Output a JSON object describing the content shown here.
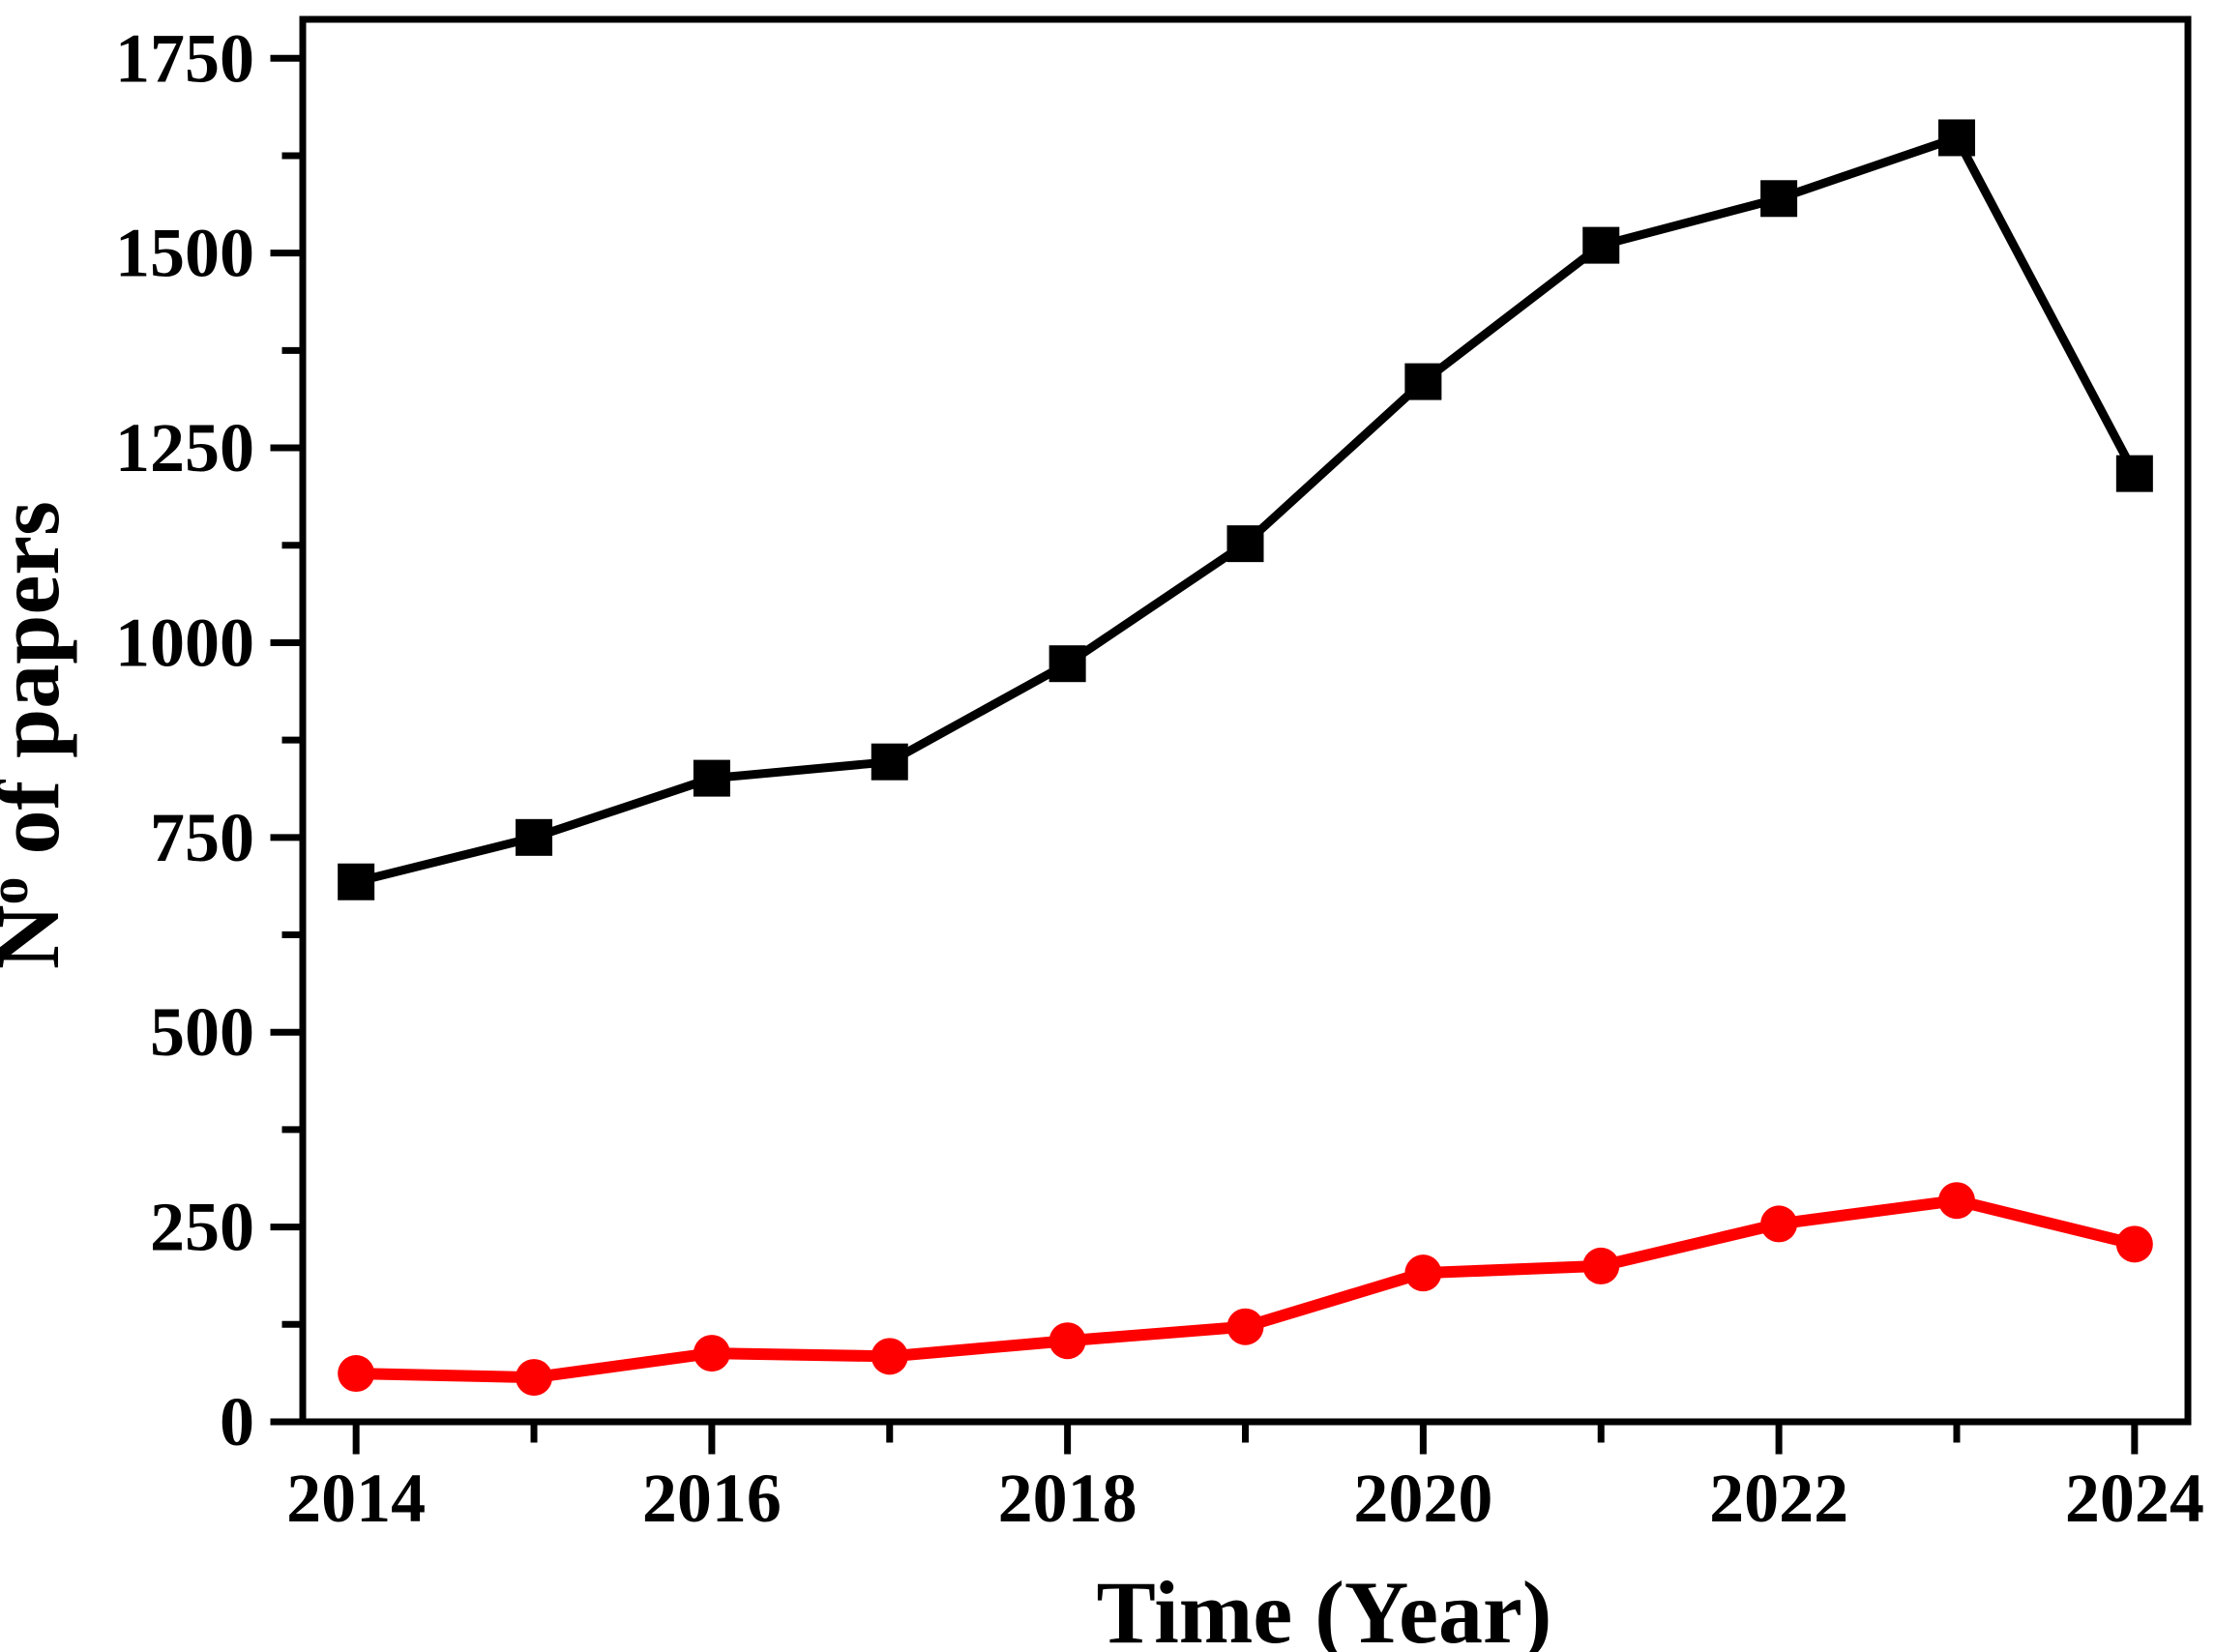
{
  "figure": {
    "background": "#ffffff"
  },
  "chart_data": {
    "type": "line",
    "title": "",
    "xlabel": "Time (Year)",
    "ylabel": "Nº of papers",
    "ylabel_parts": {
      "base": "N",
      "sup": "o",
      "rest": " of papers"
    },
    "x": [
      2014,
      2015,
      2016,
      2017,
      2018,
      2019,
      2020,
      2021,
      2022,
      2023,
      2024
    ],
    "series": [
      {
        "name": "black-squares-series",
        "color": "#000000",
        "marker": "square",
        "line_width": 9,
        "values": [
          693,
          750,
          826,
          847,
          973,
          1127,
          1335,
          1510,
          1570,
          1648,
          1217
        ]
      },
      {
        "name": "red-circles-series",
        "color": "#ff0000",
        "marker": "circle",
        "line_width": 12,
        "values": [
          62,
          57,
          88,
          84,
          104,
          122,
          191,
          200,
          254,
          284,
          228
        ]
      }
    ],
    "x_major_ticks": [
      2014,
      2016,
      2018,
      2020,
      2022,
      2024
    ],
    "x_minor_ticks": [
      2015,
      2017,
      2019,
      2021,
      2023
    ],
    "y_major_ticks": [
      0,
      250,
      500,
      750,
      1000,
      1250,
      1500,
      1750
    ],
    "y_minor_ticks": [
      125,
      375,
      625,
      875,
      1125,
      1375,
      1625
    ],
    "xlim": [
      2013.7,
      2024.3
    ],
    "ylim": [
      0,
      1800
    ],
    "grid": false,
    "legend": "none",
    "axis_color": "#000000"
  }
}
